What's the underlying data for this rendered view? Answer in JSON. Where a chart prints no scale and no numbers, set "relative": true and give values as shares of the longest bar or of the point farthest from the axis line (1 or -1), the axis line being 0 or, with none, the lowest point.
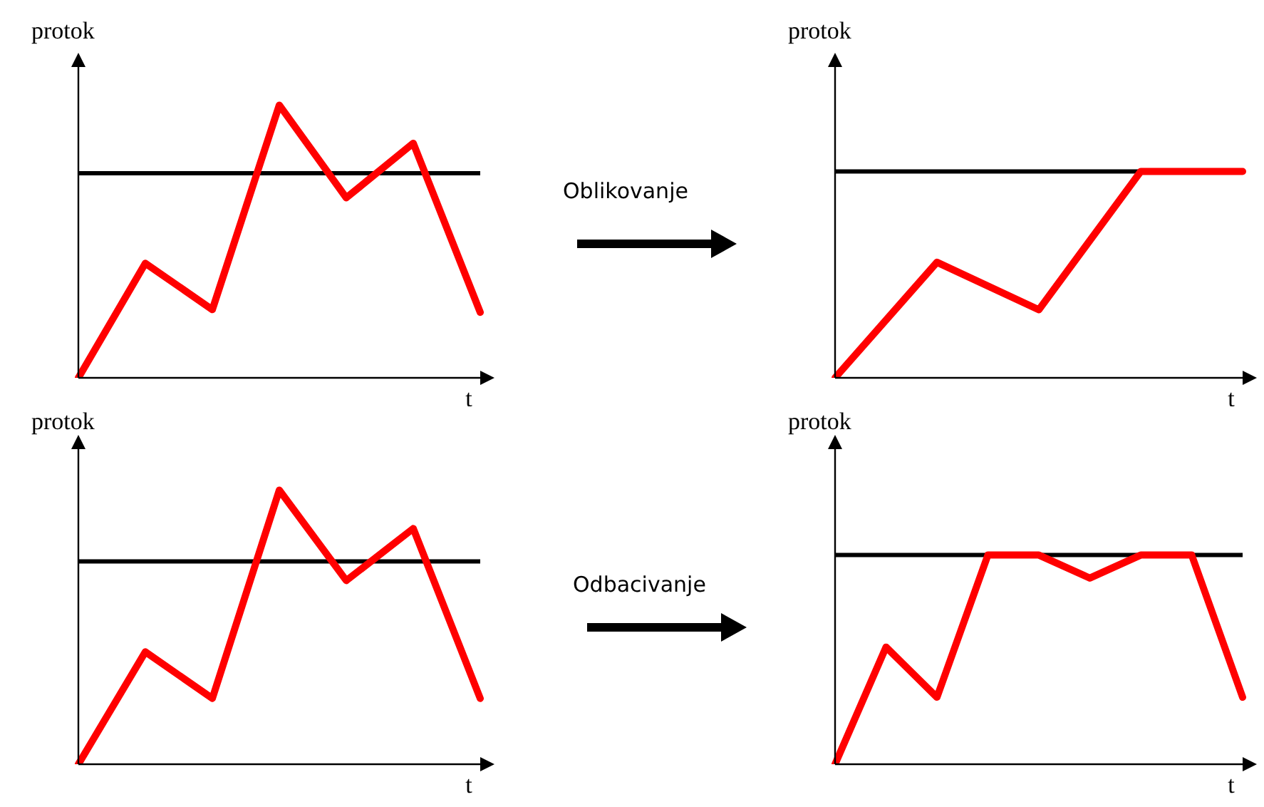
{
  "chart_data": [
    {
      "type": "line",
      "relative": true,
      "xlabel": "t",
      "ylabel": "protok",
      "tick_labels": false,
      "categories": [
        null,
        null,
        null,
        null,
        null,
        null,
        null
      ],
      "series": [
        {
          "color": "#ff0000",
          "values": [
            0,
            0.42,
            0.25,
            1,
            0.66,
            0.86,
            0.24
          ]
        }
      ],
      "ref_lines": [
        {
          "axis": "y",
          "value": 0.75,
          "color": "#000000"
        }
      ]
    },
    {
      "type": "line",
      "relative": true,
      "xlabel": "t",
      "ylabel": "protok",
      "tick_labels": false,
      "annotations": [
        "Oblikovanje"
      ],
      "categories": [
        null,
        null,
        null,
        null,
        null
      ],
      "series": [
        {
          "color": "#ff0000",
          "values": [
            0,
            0.56,
            0.33,
            1,
            1
          ]
        }
      ],
      "ref_lines": [
        {
          "axis": "y",
          "value": 1,
          "color": "#000000"
        }
      ]
    },
    {
      "type": "line",
      "relative": true,
      "xlabel": "t",
      "ylabel": "protok",
      "tick_labels": false,
      "categories": [
        null,
        null,
        null,
        null,
        null,
        null,
        null
      ],
      "series": [
        {
          "color": "#ff0000",
          "values": [
            0,
            0.41,
            0.24,
            1,
            0.67,
            0.86,
            0.24
          ]
        }
      ],
      "ref_lines": [
        {
          "axis": "y",
          "value": 0.74,
          "color": "#000000"
        }
      ]
    },
    {
      "type": "line",
      "relative": true,
      "xlabel": "t",
      "ylabel": "protok",
      "tick_labels": false,
      "annotations": [
        "Odbacivanje"
      ],
      "categories": [
        null,
        null,
        null,
        null,
        null,
        null,
        null,
        null,
        null
      ],
      "series": [
        {
          "color": "#ff0000",
          "values": [
            0,
            0.56,
            0.32,
            1,
            1,
            0.89,
            1,
            1,
            0.32
          ]
        }
      ],
      "ref_lines": [
        {
          "axis": "y",
          "value": 1,
          "color": "#000000"
        }
      ]
    }
  ]
}
